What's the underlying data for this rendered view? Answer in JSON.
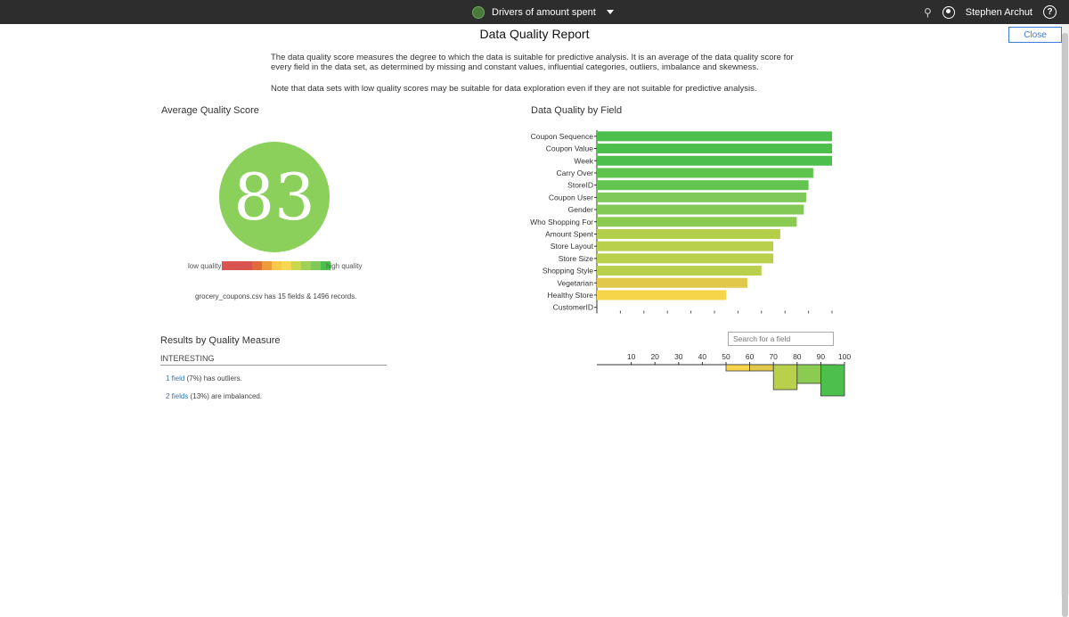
{
  "topbar": {
    "title": "Drivers of amount spent",
    "user": "Stephen Archut",
    "help": "?"
  },
  "report": {
    "title": "Data Quality Report",
    "close_label": "Close",
    "description": "The data quality score measures the degree to which the data is suitable for predictive analysis. It is an average of the data quality score for every field in the data set, as determined by missing and constant values, influential categories, outliers, imbalance and skewness.",
    "note": "Note that data sets with low quality scores may be suitable for data exploration even if they are not suitable for predictive analysis."
  },
  "average": {
    "heading": "Average Quality Score",
    "score": "83",
    "score_color": "#8ad05b",
    "low_label": "low quality",
    "high_label": "high quality",
    "legend_colors": [
      "#d9534f",
      "#d9534f",
      "#e06b3c",
      "#ef9b3a",
      "#f7c948",
      "#f5d84f",
      "#c9d94e",
      "#9fd057",
      "#7fc95a",
      "#4cbf4c"
    ],
    "records_text": "grocery_coupons.csv has 15 fields & 1496 records."
  },
  "field_chart": {
    "heading": "Data Quality by Field",
    "search_placeholder": "Search for a field"
  },
  "chart_data": [
    {
      "type": "bar",
      "orientation": "horizontal",
      "title": "Data Quality by Field",
      "categories": [
        "Coupon Sequence",
        "Coupon Value",
        "Week",
        "Carry Over",
        "StoreID",
        "Coupon User",
        "Gender",
        "Who Shopping For",
        "Amount Spent",
        "Store Layout",
        "Store Size",
        "Shopping Style",
        "Vegetarian",
        "Healthy Store",
        "CustomerID"
      ],
      "values": [
        100,
        100,
        100,
        92,
        90,
        89,
        88,
        85,
        78,
        75,
        75,
        70,
        64,
        55,
        0
      ],
      "colors": [
        "#4cbf4c",
        "#4cbf4c",
        "#4cbf4c",
        "#5fc44e",
        "#62c54f",
        "#7fc95a",
        "#82ca55",
        "#8ccb52",
        "#b3cf4a",
        "#b8d04b",
        "#b8d04b",
        "#b8d04b",
        "#e2c84a",
        "#f7d54a",
        "#ffffff"
      ],
      "xlim": [
        0,
        100
      ]
    },
    {
      "type": "bar",
      "title": "",
      "categories": [
        "10",
        "20",
        "30",
        "40",
        "50",
        "60",
        "70",
        "80",
        "90",
        "100"
      ],
      "x_ticks": [
        10,
        20,
        30,
        40,
        50,
        60,
        70,
        80,
        90,
        100
      ],
      "bins": [
        {
          "from": 50,
          "to": 60,
          "count": 1,
          "color": "#f7d54a"
        },
        {
          "from": 60,
          "to": 70,
          "count": 1,
          "color": "#e2c84a"
        },
        {
          "from": 70,
          "to": 80,
          "count": 4,
          "color": "#b8d04b"
        },
        {
          "from": 80,
          "to": 90,
          "count": 3,
          "color": "#8ccb52"
        },
        {
          "from": 90,
          "to": 100,
          "count": 5,
          "color": "#4cbf4c"
        }
      ]
    }
  ],
  "results": {
    "heading": "Results by Quality Measure",
    "interesting_label": "INTERESTING",
    "rows": [
      {
        "link": "1 field",
        "text": " (7%) has outliers."
      },
      {
        "link": "2 fields",
        "text": " (13%) are imbalanced."
      }
    ]
  }
}
